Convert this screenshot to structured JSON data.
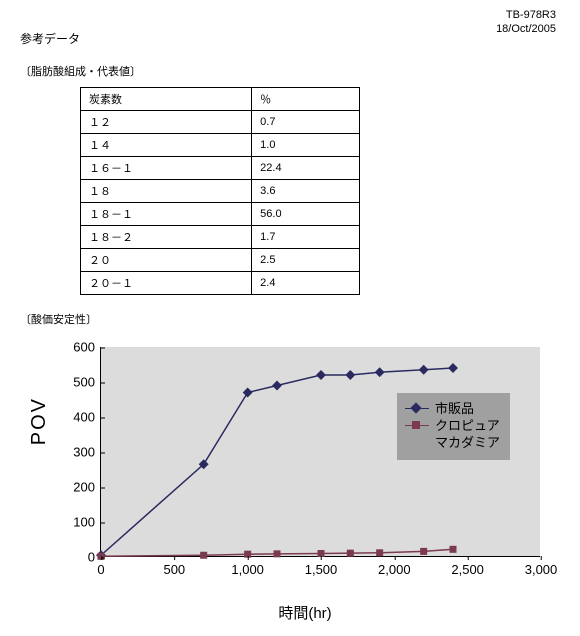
{
  "doc_id": {
    "code": "TB-978R3",
    "date": "18/Oct/2005"
  },
  "title": "参考データ",
  "table": {
    "caption": "〔脂肪酸組成・代表値〕",
    "headers": [
      "炭素数",
      "％"
    ],
    "rows": [
      [
        "１２",
        "0.7"
      ],
      [
        "１４",
        "1.0"
      ],
      [
        "１６－１",
        "22.4"
      ],
      [
        "１８",
        "3.6"
      ],
      [
        "１８－１",
        "56.0"
      ],
      [
        "１８－２",
        "1.7"
      ],
      [
        "２０",
        "2.5"
      ],
      [
        "２０－１",
        "2.4"
      ]
    ]
  },
  "chart": {
    "caption": "〔酸価安定性〕",
    "type": "line",
    "ylabel": "POV",
    "xlabel": "時間(hr)",
    "xlim": [
      0,
      3000
    ],
    "xtick_step": 500,
    "ylim": [
      0,
      600
    ],
    "ytick_step": 100,
    "plot_bg": "#dcdcdc",
    "legend_bg": "#a0a0a0",
    "series": [
      {
        "name": "市販品",
        "color": "#2a2a60",
        "marker": "diamond",
        "x": [
          0,
          700,
          1000,
          1200,
          1500,
          1700,
          1900,
          2200,
          2400
        ],
        "y": [
          5,
          265,
          470,
          490,
          520,
          520,
          528,
          535,
          540
        ]
      },
      {
        "name": "クロピュア\nマカダミア",
        "color": "#7a3a50",
        "marker": "square",
        "x": [
          0,
          700,
          1000,
          1200,
          1500,
          1700,
          1900,
          2200,
          2400
        ],
        "y": [
          2,
          5,
          8,
          9,
          10,
          11,
          12,
          16,
          22
        ]
      }
    ]
  }
}
